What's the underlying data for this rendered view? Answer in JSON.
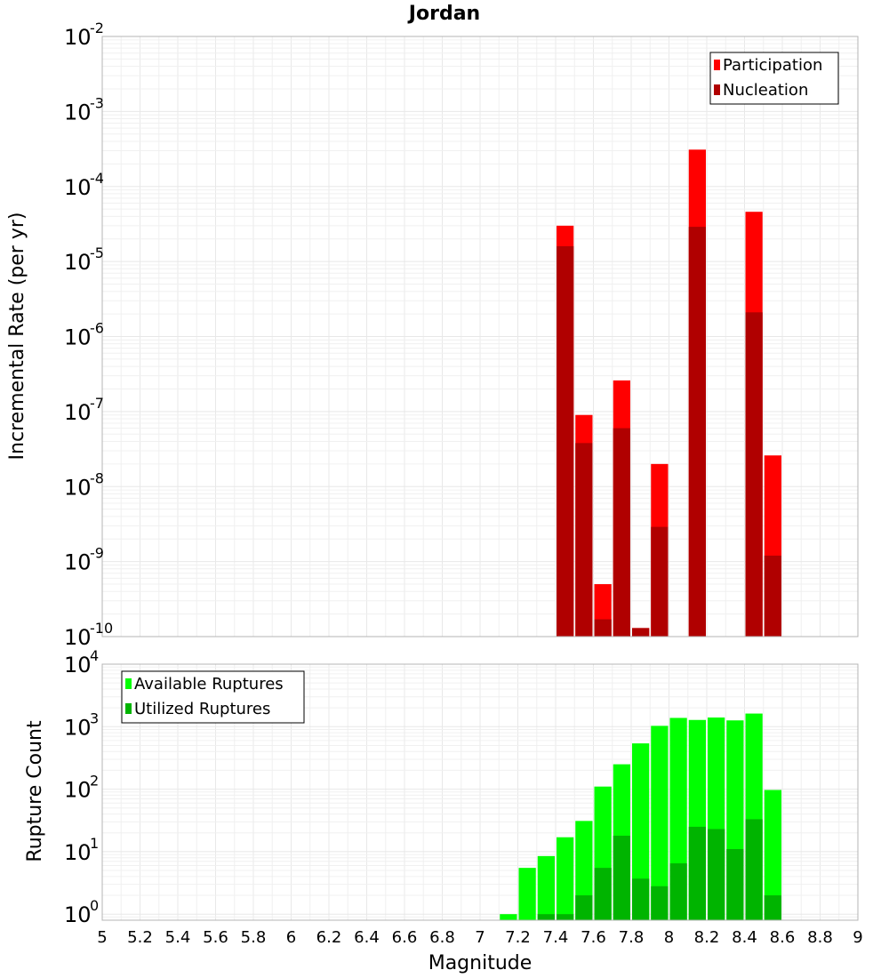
{
  "chart_data": [
    {
      "type": "bar",
      "title": "Jordan",
      "xlabel": "",
      "ylabel": "Incremental Rate (per yr)",
      "yscale": "log",
      "ylim": [
        1e-10,
        0.01
      ],
      "xlim": [
        5,
        9
      ],
      "bar_width": 0.1,
      "ytick_exponents": [
        -10,
        -9,
        -8,
        -7,
        -6,
        -5,
        -4,
        -3,
        -2
      ],
      "legend": {
        "position": "top-right",
        "entries": [
          {
            "label": "Participation",
            "color": "#ff0000"
          },
          {
            "label": "Nucleation",
            "color": "#b00000"
          }
        ]
      },
      "series": [
        {
          "name": "Participation",
          "color": "#ff0000",
          "x": [
            7.45,
            7.55,
            7.65,
            7.75,
            7.85,
            7.95,
            8.15,
            8.45,
            8.55
          ],
          "values": [
            3e-05,
            9e-08,
            5e-10,
            2.6e-07,
            1.3e-10,
            2e-08,
            0.00031,
            4.6e-05,
            2.6e-08
          ]
        },
        {
          "name": "Nucleation",
          "color": "#b00000",
          "x": [
            7.45,
            7.55,
            7.65,
            7.75,
            7.85,
            7.95,
            8.15,
            8.45,
            8.55
          ],
          "values": [
            1.6e-05,
            3.8e-08,
            1.7e-10,
            6e-08,
            1.3e-10,
            2.9e-09,
            2.9e-05,
            2.1e-06,
            1.2e-09
          ]
        }
      ]
    },
    {
      "type": "bar",
      "title": "",
      "xlabel": "Magnitude",
      "ylabel": "Rupture Count",
      "yscale": "log",
      "ylim": [
        0.8,
        10000
      ],
      "xlim": [
        5,
        9
      ],
      "bar_width": 0.1,
      "ytick_exponents": [
        0,
        1,
        2,
        3,
        4
      ],
      "xticks": [
        "5",
        "5.2",
        "5.4",
        "5.6",
        "5.8",
        "6",
        "6.2",
        "6.4",
        "6.6",
        "6.8",
        "7",
        "7.2",
        "7.4",
        "7.6",
        "7.8",
        "8",
        "8.2",
        "8.4",
        "8.6",
        "8.8",
        "9"
      ],
      "legend": {
        "position": "top-left",
        "entries": [
          {
            "label": "Available Ruptures",
            "color": "#00ff00"
          },
          {
            "label": "Utilized Ruptures",
            "color": "#00b400"
          }
        ]
      },
      "series": [
        {
          "name": "Available Ruptures",
          "color": "#00ff00",
          "x": [
            7.15,
            7.25,
            7.35,
            7.45,
            7.55,
            7.65,
            7.75,
            7.85,
            7.95,
            8.05,
            8.15,
            8.25,
            8.35,
            8.45,
            8.55
          ],
          "values": [
            1,
            5.5,
            8.5,
            17,
            31,
            110,
            250,
            540,
            1030,
            1380,
            1280,
            1400,
            1260,
            1620,
            97
          ]
        },
        {
          "name": "Utilized Ruptures",
          "color": "#00b400",
          "x": [
            7.35,
            7.45,
            7.55,
            7.65,
            7.75,
            7.85,
            7.95,
            8.05,
            8.15,
            8.25,
            8.35,
            8.45,
            8.55
          ],
          "values": [
            1,
            1,
            2,
            5.5,
            18,
            3.7,
            2.8,
            6.5,
            25,
            23,
            11,
            33,
            2
          ]
        }
      ]
    }
  ]
}
